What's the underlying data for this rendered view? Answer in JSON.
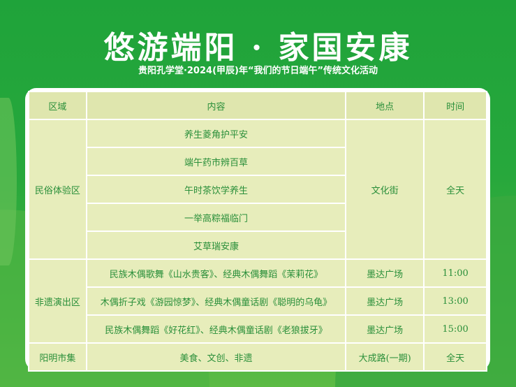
{
  "title": "悠游端阳 · 家国安康",
  "subtitle": "贵阳孔学堂·2024(甲辰)年“我们的节日端午”传统文化活动",
  "colors": {
    "background": "#27a83c",
    "table_bg": "#e7edbb",
    "text": "#2a8f3a"
  },
  "table": {
    "headers": [
      "区域",
      "内容",
      "地点",
      "时间"
    ],
    "sections": [
      {
        "area": "民俗体验区",
        "place": "文化街",
        "time": "全天",
        "items": [
          "养生菱角护平安",
          "端午药市辨百草",
          "午时茶饮学养生",
          "一举高粽福临门",
          "艾草瑞安康"
        ]
      },
      {
        "area": "非遗演出区",
        "rows": [
          {
            "content": "民族木偶歌舞《山水贵客》、经典木偶舞蹈《茉莉花》",
            "place": "墨达广场",
            "time": "11:00"
          },
          {
            "content": "木偶折子戏《游园惊梦》、经典木偶童话剧《聪明的乌龟》",
            "place": "墨达广场",
            "time": "13:00"
          },
          {
            "content": "民族木偶舞蹈《好花红》、经典木偶童话剧《老狼拔牙》",
            "place": "墨达广场",
            "time": "15:00"
          }
        ]
      },
      {
        "area": "阳明市集",
        "content": "美食、文创、非遗",
        "place": "大成路(一期)",
        "time": "全天"
      }
    ]
  }
}
